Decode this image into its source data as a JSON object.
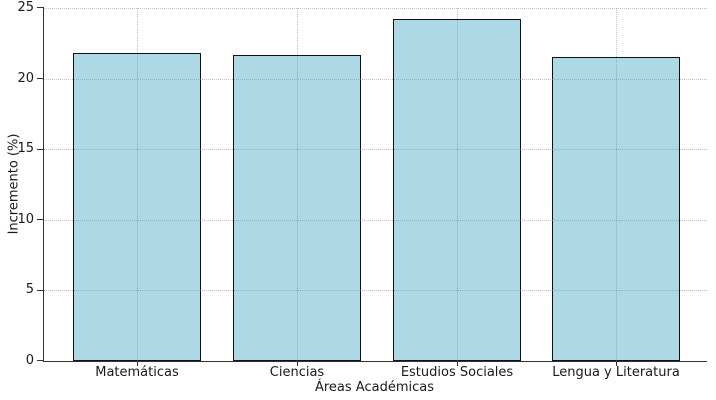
{
  "chart_data": {
    "type": "bar",
    "title": "",
    "categories": [
      "Matemáticas",
      "Ciencias",
      "Estudios Sociales",
      "Lengua y Literatura"
    ],
    "values": [
      21.8,
      21.7,
      24.2,
      21.5
    ],
    "xlabel": "Áreas Académicas",
    "ylabel": "Incremento (%)",
    "ylim": [
      0,
      25
    ],
    "yticks": [
      0,
      5,
      10,
      15,
      20,
      25
    ],
    "grid": true,
    "grid_style": "dotted",
    "legend": "none",
    "bar_color": "#ADD8E6",
    "bar_edge_color": "#111111",
    "background_color": "#ffffff"
  }
}
